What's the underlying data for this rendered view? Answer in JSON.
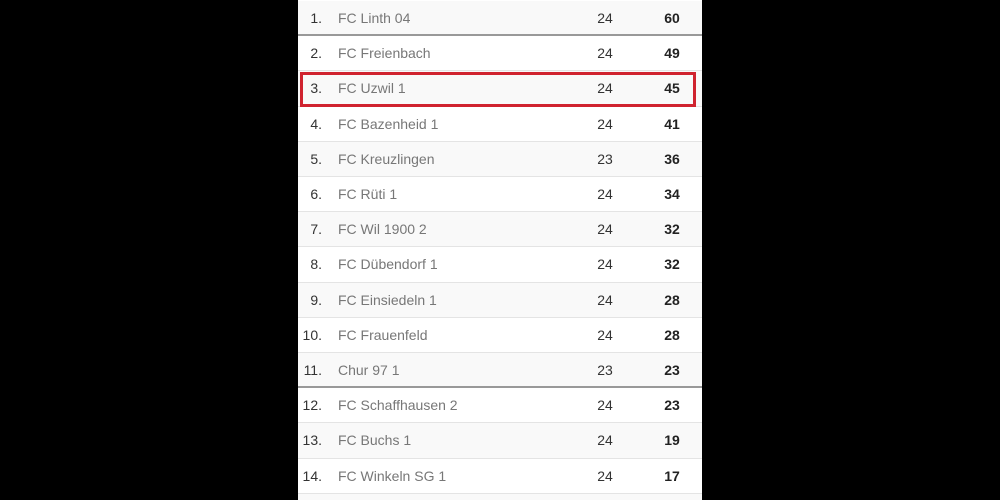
{
  "standings": [
    {
      "rank": "1.",
      "team": "FC Linth 04",
      "games": "24",
      "points": "60"
    },
    {
      "rank": "2.",
      "team": "FC Freienbach",
      "games": "24",
      "points": "49"
    },
    {
      "rank": "3.",
      "team": "FC Uzwil 1",
      "games": "24",
      "points": "45",
      "highlighted": true
    },
    {
      "rank": "4.",
      "team": "FC Bazenheid 1",
      "games": "24",
      "points": "41"
    },
    {
      "rank": "5.",
      "team": "FC Kreuzlingen",
      "games": "23",
      "points": "36"
    },
    {
      "rank": "6.",
      "team": "FC Rüti 1",
      "games": "24",
      "points": "34"
    },
    {
      "rank": "7.",
      "team": "FC Wil 1900 2",
      "games": "24",
      "points": "32"
    },
    {
      "rank": "8.",
      "team": "FC Dübendorf 1",
      "games": "24",
      "points": "32"
    },
    {
      "rank": "9.",
      "team": "FC Einsiedeln 1",
      "games": "24",
      "points": "28"
    },
    {
      "rank": "10.",
      "team": "FC Frauenfeld",
      "games": "24",
      "points": "28"
    },
    {
      "rank": "11.",
      "team": "Chur 97 1",
      "games": "23",
      "points": "23"
    },
    {
      "rank": "12.",
      "team": "FC Schaffhausen 2",
      "games": "24",
      "points": "23"
    },
    {
      "rank": "13.",
      "team": "FC Buchs 1",
      "games": "24",
      "points": "19"
    },
    {
      "rank": "14.",
      "team": "FC Winkeln SG 1",
      "games": "24",
      "points": "17"
    }
  ],
  "highlight_color": "#d0232f"
}
